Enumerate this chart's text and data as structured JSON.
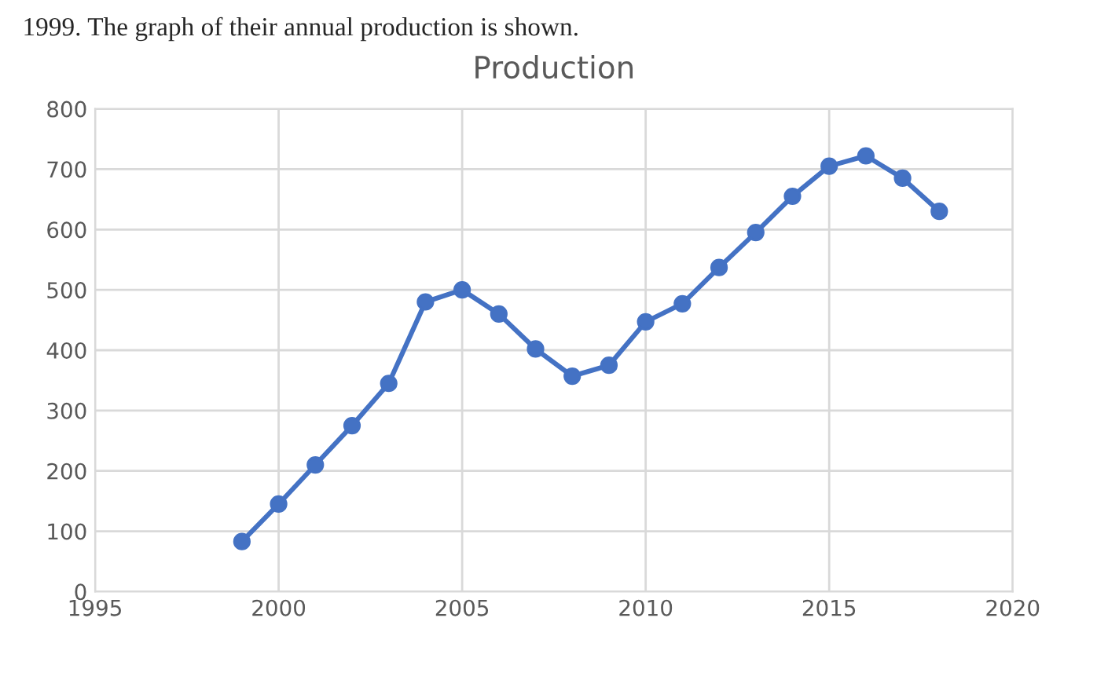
{
  "chart_data": {
    "type": "line",
    "title": "Production",
    "annotations": [
      "1999. The graph of their annual production is shown."
    ],
    "x": [
      1999,
      2000,
      2001,
      2002,
      2003,
      2004,
      2005,
      2006,
      2007,
      2008,
      2009,
      2010,
      2011,
      2012,
      2013,
      2014,
      2015,
      2016,
      2017,
      2018
    ],
    "series": [
      {
        "color": "#4472c4",
        "values": [
          83,
          145,
          210,
          275,
          345,
          480,
          500,
          460,
          402,
          357,
          375,
          447,
          477,
          537,
          595,
          655,
          705,
          722,
          685,
          630
        ]
      }
    ],
    "xlim": [
      1995,
      2020
    ],
    "xticks": [
      1995,
      2000,
      2005,
      2010,
      2015,
      2020
    ],
    "ylim": [
      0,
      800
    ],
    "yticks": [
      0,
      100,
      200,
      300,
      400,
      500,
      600,
      700,
      800
    ],
    "grid": true,
    "marker": "circle",
    "line_style": "solid",
    "legend": false
  }
}
